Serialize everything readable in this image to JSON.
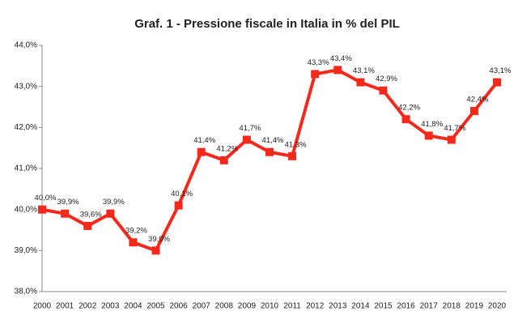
{
  "chart_data": {
    "type": "line",
    "title": "Graf. 1 - Pressione fiscale in Italia in % del PIL",
    "categories": [
      "2000",
      "2001",
      "2002",
      "2003",
      "2004",
      "2005",
      "2006",
      "2007",
      "2008",
      "2009",
      "2010",
      "2011",
      "2012",
      "2013",
      "2014",
      "2015",
      "2016",
      "2017",
      "2018",
      "2019",
      "2020"
    ],
    "series": [
      {
        "color": "#f5281c",
        "values": [
          40.0,
          39.9,
          39.6,
          39.9,
          39.2,
          39.0,
          40.1,
          41.4,
          41.2,
          41.7,
          41.4,
          41.3,
          43.3,
          43.4,
          43.1,
          42.9,
          42.2,
          41.8,
          41.7,
          42.4,
          43.1
        ],
        "value_labels": [
          "40,0%",
          "39,9%",
          "39,6%",
          "39,9%",
          "39,2%",
          "39,0%",
          "40,1%",
          "41,4%",
          "41,2%",
          "41,7%",
          "41,4%",
          "41,3%",
          "43,3%",
          "43,4%",
          "43,1%",
          "42,9%",
          "42,2%",
          "41,8%",
          "41,7%",
          "42,4%",
          "43,1%"
        ]
      }
    ],
    "ylim": [
      38,
      44
    ],
    "yticks": [
      {
        "value": 38,
        "label": "38,0%"
      },
      {
        "value": 39,
        "label": "39,0%"
      },
      {
        "value": 40,
        "label": "40,0%"
      },
      {
        "value": 41,
        "label": "41,0%"
      },
      {
        "value": 42,
        "label": "42,0%"
      },
      {
        "value": 43,
        "label": "43,0%"
      },
      {
        "value": 44,
        "label": "44,0%"
      }
    ],
    "grid": false
  }
}
